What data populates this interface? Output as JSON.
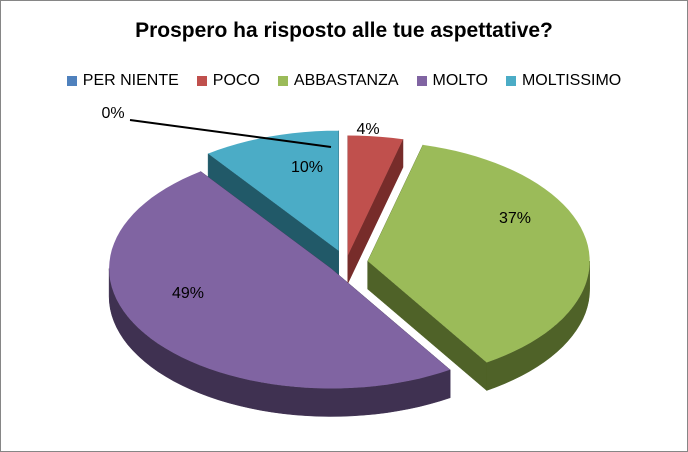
{
  "chart_data": {
    "type": "pie",
    "title": "Prospero ha risposto alle tue aspettative?",
    "categories": [
      "PER NIENTE",
      "POCO",
      "ABBASTANZA",
      "MOLTO",
      "MOLTISSIMO"
    ],
    "values": [
      0,
      4,
      37,
      49,
      10
    ],
    "data_labels": [
      "0%",
      "4%",
      "37%",
      "49%",
      "10%"
    ],
    "colors": [
      "#4F81BD",
      "#C0504D",
      "#9BBB59",
      "#8064A2",
      "#4BACC6"
    ],
    "side_colors": [
      "#2C4D75",
      "#772C2A",
      "#4F6228",
      "#3F3151",
      "#215968"
    ],
    "legend_position": "top",
    "style": "exploded 3D pie"
  }
}
